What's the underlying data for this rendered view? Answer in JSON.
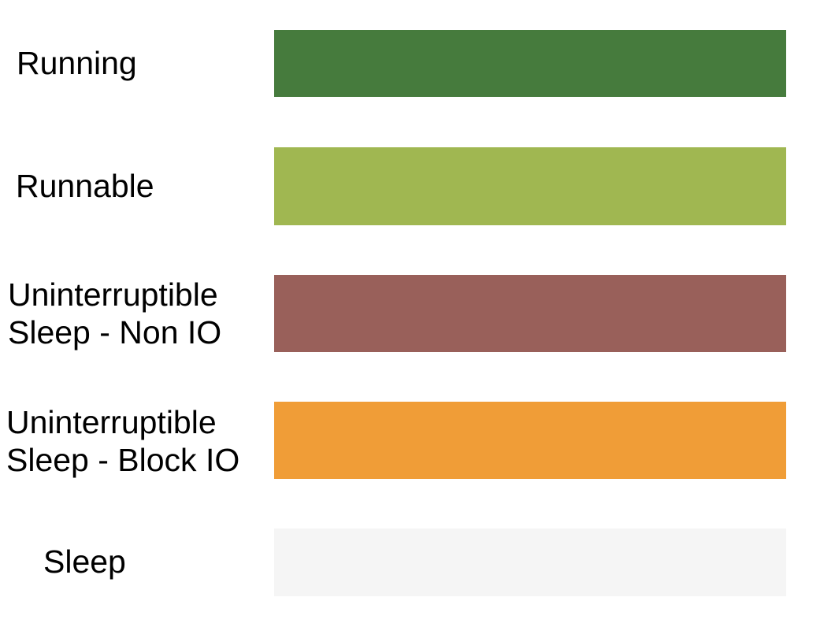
{
  "legend": {
    "rows": [
      {
        "label": "Running",
        "label2": "",
        "color": "#467B3D"
      },
      {
        "label": "Runnable",
        "label2": "",
        "color": "#A0B751"
      },
      {
        "label": "Uninterruptible",
        "label2": "Sleep - Non IO",
        "color": "#99605A"
      },
      {
        "label": "Uninterruptible",
        "label2": "Sleep - Block IO",
        "color": "#F09D37"
      },
      {
        "label": "Sleep",
        "label2": "",
        "color": "#F5F5F5"
      }
    ]
  },
  "chart_data": {
    "type": "table",
    "title": "",
    "description": "Legend mapping process scheduler states to swatch colors",
    "legend_position": "left labels, right color swatches",
    "entries": [
      {
        "category": "Running",
        "color": "#467B3D"
      },
      {
        "category": "Runnable",
        "color": "#A0B751"
      },
      {
        "category": "Uninterruptible Sleep - Non IO",
        "color": "#99605A"
      },
      {
        "category": "Uninterruptible Sleep - Block IO",
        "color": "#F09D37"
      },
      {
        "category": "Sleep",
        "color": "#F5F5F5"
      }
    ]
  }
}
